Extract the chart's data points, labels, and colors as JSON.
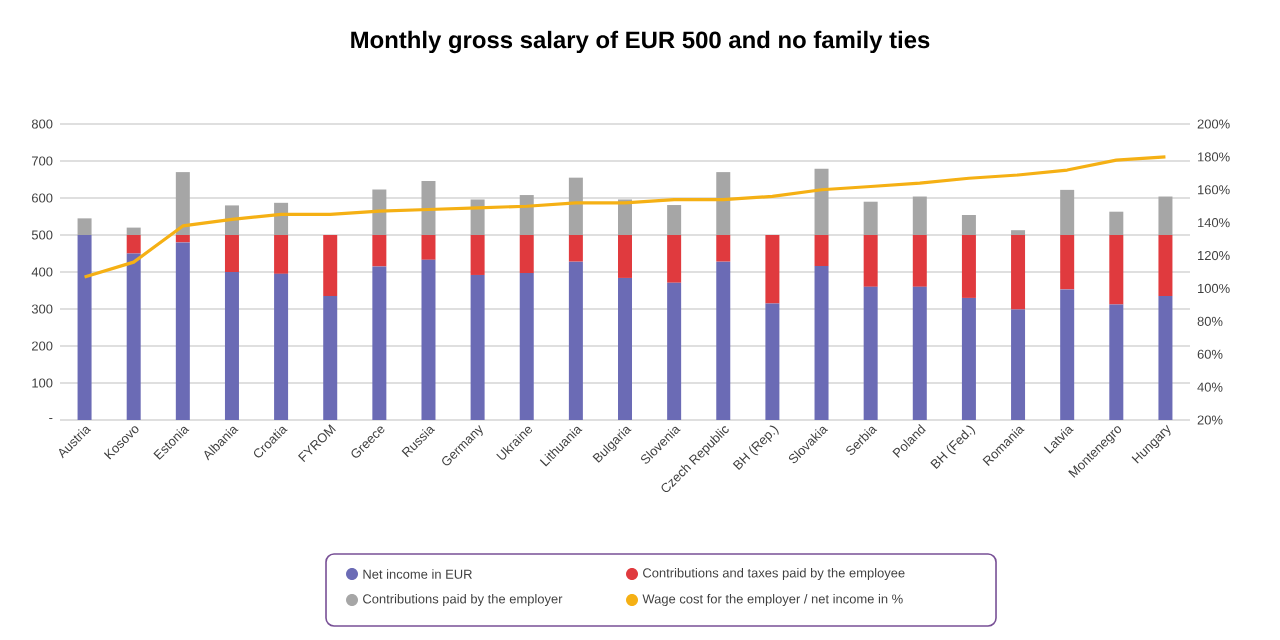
{
  "chart_data": {
    "type": "bar",
    "title": "Monthly gross salary of EUR 500 and no family ties",
    "categories": [
      "Austria",
      "Kosovo",
      "Estonia",
      "Albania",
      "Croatia",
      "FYROM",
      "Greece",
      "Russia",
      "Germany",
      "Ukraine",
      "Lithuania",
      "Bulgaria",
      "Slovenia",
      "Czech Republic",
      "BH (Rep.)",
      "Slovakia",
      "Serbia",
      "Poland",
      "BH (Fed.)",
      "Romania",
      "Latvia",
      "Montenegro",
      "Hungary"
    ],
    "stacked": true,
    "grid": "y",
    "legend": "bottom",
    "ylim": [
      0,
      800
    ],
    "yticks": [
      {
        "value": 0,
        "label": "-"
      },
      100,
      200,
      300,
      400,
      500,
      600,
      700,
      800
    ],
    "y2lim": [
      20,
      200
    ],
    "y2ticks": [
      {
        "value": 20,
        "label": "20%"
      },
      {
        "value": 40,
        "label": "40%"
      },
      {
        "value": 60,
        "label": "60%"
      },
      {
        "value": 80,
        "label": "80%"
      },
      {
        "value": 100,
        "label": "100%"
      },
      {
        "value": 120,
        "label": "120%"
      },
      {
        "value": 140,
        "label": "140%"
      },
      {
        "value": 160,
        "label": "160%"
      },
      {
        "value": 180,
        "label": "180%"
      },
      {
        "value": 200,
        "label": "200%"
      }
    ],
    "series": [
      {
        "name": "Net income in EUR",
        "type": "bar",
        "color": "#6b6bb5",
        "values": [
          500,
          450,
          480,
          400,
          395,
          335,
          415,
          433,
          392,
          397,
          428,
          384,
          371,
          428,
          315,
          416,
          360,
          360,
          330,
          299,
          353,
          312,
          335
        ]
      },
      {
        "name": "Contributions and taxes paid by the employee",
        "type": "bar",
        "color": "#e03a3e",
        "values": [
          0,
          50,
          20,
          100,
          105,
          165,
          85,
          67,
          108,
          103,
          72,
          116,
          129,
          72,
          185,
          84,
          140,
          140,
          170,
          201,
          147,
          188,
          165
        ]
      },
      {
        "name": "Contributions paid by the employer",
        "type": "bar",
        "color": "#a6a6a6",
        "values": [
          45,
          20,
          170,
          80,
          87,
          0,
          123,
          146,
          96,
          108,
          155,
          96,
          81,
          170,
          0,
          179,
          90,
          104,
          54,
          13,
          122,
          63,
          104
        ]
      },
      {
        "name": "Wage cost for the employer / net income in %",
        "type": "line",
        "axis": "y2",
        "color": "#f5b014",
        "values": [
          107,
          116,
          138,
          142,
          145,
          145,
          147,
          148,
          149,
          150,
          152,
          152,
          154,
          154,
          156,
          160,
          162,
          164,
          167,
          169,
          172,
          178,
          180
        ]
      }
    ]
  }
}
